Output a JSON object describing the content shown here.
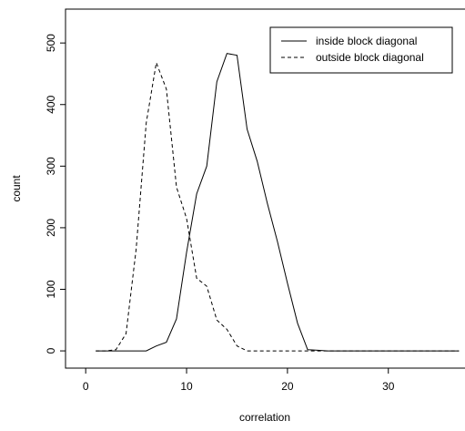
{
  "chart_data": {
    "type": "line",
    "x_label": "correlation",
    "y_label": "count",
    "x": [
      1,
      2,
      3,
      4,
      5,
      6,
      7,
      8,
      9,
      10,
      11,
      12,
      13,
      14,
      15,
      16,
      17,
      18,
      19,
      20,
      21,
      22,
      23,
      24,
      25,
      26,
      27,
      28,
      29,
      30,
      31,
      32,
      33,
      34,
      35,
      36,
      37
    ],
    "series": [
      {
        "name": "inside block diagonal",
        "color": "#000000",
        "dash": "none",
        "values": [
          0,
          0,
          0,
          0,
          0,
          0,
          8,
          14,
          52,
          160,
          255,
          300,
          437,
          483,
          480,
          360,
          308,
          240,
          178,
          110,
          45,
          2,
          1,
          0,
          0,
          0,
          0,
          0,
          0,
          0,
          0,
          0,
          0,
          0,
          0,
          0,
          0
        ]
      },
      {
        "name": "outside block diagonal",
        "color": "#000000",
        "dash": "4,3",
        "values": [
          0,
          0,
          2,
          28,
          165,
          370,
          468,
          425,
          266,
          215,
          118,
          105,
          50,
          35,
          8,
          0,
          0,
          0,
          0,
          0,
          0,
          0,
          0,
          0,
          0,
          0,
          0,
          0,
          0,
          0,
          0,
          0,
          0,
          0,
          0,
          0,
          0
        ]
      }
    ],
    "xlim": [
      -2,
      37.6
    ],
    "ylim": [
      -28,
      555
    ],
    "xticks": [
      0,
      10,
      20,
      30
    ],
    "yticks": [
      0,
      100,
      200,
      300,
      400,
      500
    ],
    "legend": "top-right"
  }
}
